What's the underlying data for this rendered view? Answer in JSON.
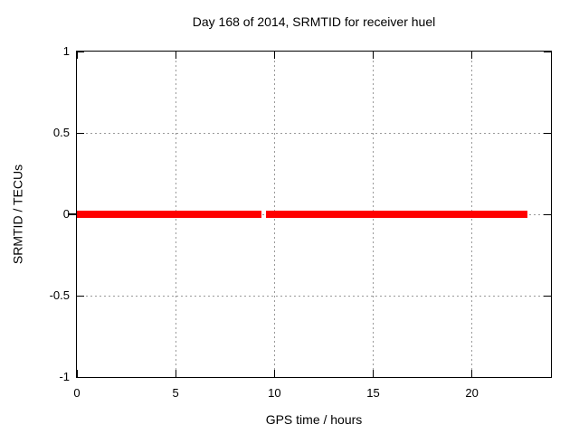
{
  "colors": {
    "background": "#ffffff",
    "border": "#000000",
    "text": "#000000",
    "grid": "#9a9a9a",
    "series": "#ff0000"
  },
  "chart_data": {
    "type": "line",
    "title": "Day 168 of 2014, SRMTID for receiver huel",
    "xlabel": "GPS time / hours",
    "ylabel": "SRMTID / TECUs",
    "xlim": [
      0,
      24
    ],
    "ylim": [
      -1,
      1
    ],
    "grid": true,
    "legend": "none",
    "xticks": [
      {
        "value": 0,
        "label": "0"
      },
      {
        "value": 5,
        "label": "5"
      },
      {
        "value": 10,
        "label": "10"
      },
      {
        "value": 15,
        "label": "15"
      },
      {
        "value": 20,
        "label": "20"
      }
    ],
    "yticks": [
      {
        "value": -1,
        "label": "-1"
      },
      {
        "value": -0.5,
        "label": "-0.5"
      },
      {
        "value": 0,
        "label": "0"
      },
      {
        "value": 0.5,
        "label": "0.5"
      },
      {
        "value": 1,
        "label": "1"
      }
    ],
    "series": [
      {
        "name": "SRMTID",
        "color": "#ff0000",
        "y_value": 0,
        "x_segments": [
          [
            0,
            9.35
          ],
          [
            9.57,
            22.8
          ]
        ],
        "data_gap_hours": [
          9.35,
          9.57
        ]
      }
    ]
  }
}
